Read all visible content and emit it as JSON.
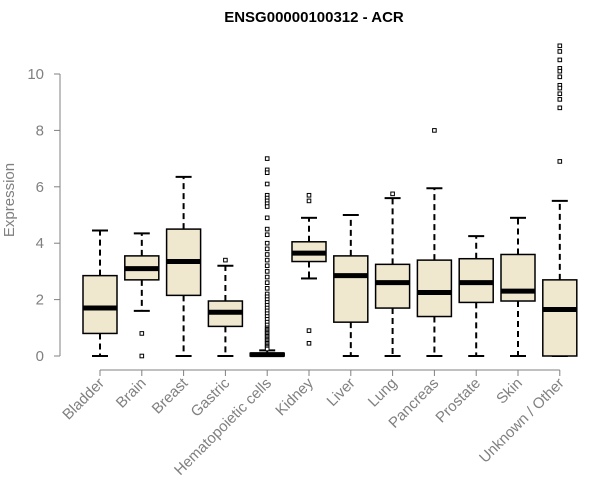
{
  "chart_data": {
    "type": "box",
    "title": "ENSG00000100312 - ACR",
    "xlabel": "",
    "ylabel": "Expression",
    "ylim": [
      0,
      11
    ],
    "yticks": [
      0,
      2,
      4,
      6,
      8,
      10
    ],
    "box_color": "#efe8cf",
    "categories": [
      "Bladder",
      "Brain",
      "Breast",
      "Gastric",
      "Hematopoietic cells",
      "Kidney",
      "Liver",
      "Lung",
      "Pancreas",
      "Prostate",
      "Skin",
      "Unknown / Other"
    ],
    "boxes": [
      {
        "name": "Bladder",
        "min": 0,
        "q1": 0.8,
        "median": 1.7,
        "q3": 2.85,
        "max": 4.45,
        "outliers": []
      },
      {
        "name": "Brain",
        "min": 1.6,
        "q1": 2.7,
        "median": 3.1,
        "q3": 3.55,
        "max": 4.35,
        "outliers": [
          0.8,
          0.0
        ]
      },
      {
        "name": "Breast",
        "min": 0,
        "q1": 2.15,
        "median": 3.35,
        "q3": 4.5,
        "max": 6.35,
        "outliers": []
      },
      {
        "name": "Gastric",
        "min": 0,
        "q1": 1.05,
        "median": 1.55,
        "q3": 1.95,
        "max": 3.2,
        "outliers": [
          3.4
        ]
      },
      {
        "name": "Hematopoietic cells",
        "min": 0,
        "q1": 0,
        "median": 0.05,
        "q3": 0.1,
        "max": 0.2,
        "outliers": [
          7.0,
          6.6,
          6.5,
          6.1,
          5.7,
          5.6,
          5.5,
          5.4,
          5.3,
          4.9,
          4.5,
          4.3,
          4.0,
          3.8,
          3.6,
          3.4,
          3.2,
          3.0,
          2.8,
          2.6,
          2.4,
          2.2,
          2.1,
          2.0,
          1.9,
          1.8,
          1.7,
          1.6,
          1.5,
          1.4,
          1.3,
          1.2,
          1.1,
          1.0,
          0.95,
          0.9,
          0.85,
          0.8,
          0.75,
          0.7,
          0.65,
          0.6,
          0.55,
          0.5,
          0.45,
          0.4,
          0.35,
          0.3,
          0.25
        ]
      },
      {
        "name": "Kidney",
        "min": 2.75,
        "q1": 3.35,
        "median": 3.65,
        "q3": 4.05,
        "max": 4.9,
        "outliers": [
          5.7,
          5.5,
          0.9,
          0.45
        ]
      },
      {
        "name": "Liver",
        "min": 0,
        "q1": 1.2,
        "median": 2.85,
        "q3": 3.55,
        "max": 5.0,
        "outliers": []
      },
      {
        "name": "Lung",
        "min": 0,
        "q1": 1.7,
        "median": 2.6,
        "q3": 3.25,
        "max": 5.6,
        "outliers": [
          5.75
        ]
      },
      {
        "name": "Pancreas",
        "min": 0,
        "q1": 1.4,
        "median": 2.25,
        "q3": 3.4,
        "max": 5.95,
        "outliers": [
          8.0
        ]
      },
      {
        "name": "Prostate",
        "min": 0,
        "q1": 1.9,
        "median": 2.6,
        "q3": 3.45,
        "max": 4.25,
        "outliers": []
      },
      {
        "name": "Skin",
        "min": 0,
        "q1": 1.95,
        "median": 2.3,
        "q3": 3.6,
        "max": 4.9,
        "outliers": []
      },
      {
        "name": "Unknown / Other",
        "min": 0,
        "q1": 0,
        "median": 1.65,
        "q3": 2.7,
        "max": 5.5,
        "outliers": [
          11.0,
          10.8,
          10.5,
          10.2,
          10.1,
          9.9,
          9.6,
          9.5,
          9.3,
          9.1,
          8.8,
          6.9
        ]
      }
    ]
  }
}
